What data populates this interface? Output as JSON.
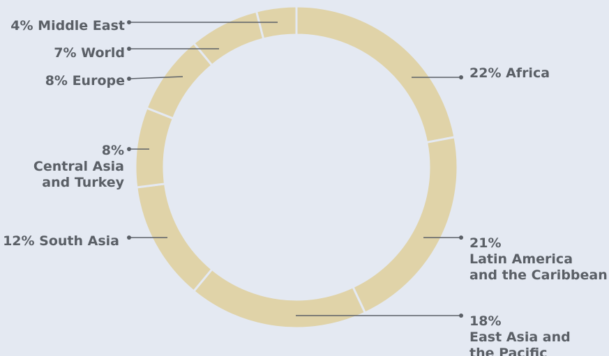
{
  "chart_data": {
    "type": "pie",
    "variant": "donut",
    "title": "",
    "slice_color": "#e0d3a8",
    "separator_color": "#e4e9f2",
    "label_color": "#5a5f66",
    "leader_color": "#5a5f66",
    "slices": [
      {
        "name": "Africa",
        "value": 22,
        "value_label": "22%",
        "label_lines": [
          "Africa"
        ]
      },
      {
        "name": "Latin America and the Caribbean",
        "value": 21,
        "value_label": "21%",
        "label_lines": [
          "Latin America",
          "and the Caribbean"
        ]
      },
      {
        "name": "East Asia and the Pacific",
        "value": 18,
        "value_label": "18%",
        "label_lines": [
          "East Asia and",
          "the Pacific"
        ]
      },
      {
        "name": "South Asia",
        "value": 12,
        "value_label": "12%",
        "label_lines": [
          "South Asia"
        ]
      },
      {
        "name": "Central Asia and Turkey",
        "value": 8,
        "value_label": "8%",
        "label_lines": [
          "Central Asia",
          "and Turkey"
        ]
      },
      {
        "name": "Europe",
        "value": 8,
        "value_label": "8%",
        "label_lines": [
          "Europe"
        ]
      },
      {
        "name": "World",
        "value": 7,
        "value_label": "7%",
        "label_lines": [
          "World"
        ]
      },
      {
        "name": "Middle East",
        "value": 4,
        "value_label": "4%",
        "label_lines": [
          "Middle East"
        ]
      }
    ]
  }
}
